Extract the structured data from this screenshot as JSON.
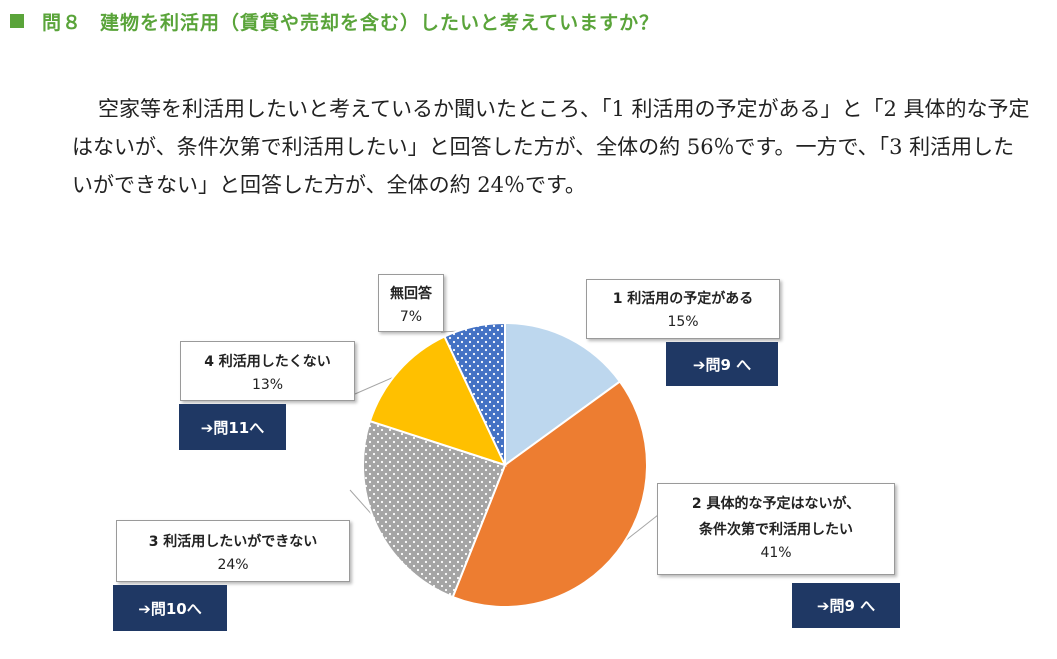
{
  "question": {
    "number": "問８",
    "title": "建物を利活用（賃貸や売却を含む）したいと考えていますか？"
  },
  "description": "空家等を利活用したいと考えているか聞いたところ、「1 利活用の予定がある」と「2 具体的な予定はないが、条件次第で利活用したい」と回答した方が、全体の約 56％です。一方で、「3 利活用したいができない」と回答した方が、全体の約 24％です。",
  "colors": {
    "heading": "#5aa43a",
    "nav_bg": "#1f3864",
    "slice1": "#bdd7ee",
    "slice2": "#ed7d31",
    "slice3": "#a5a5a5",
    "slice4": "#ffc000",
    "slice5": "#4472c4"
  },
  "chart_data": {
    "type": "pie",
    "start_angle": "12 o'clock",
    "direction": "clockwise",
    "slices": [
      {
        "category": "1 利活用の予定がある",
        "value": 15,
        "label": "15%",
        "next": "➔問9 へ"
      },
      {
        "category": "2 具体的な予定はないが、条件次第で利活用したい",
        "category_lines": [
          "2 具体的な予定はないが、",
          "条件次第で利活用したい"
        ],
        "value": 41,
        "label": "41%",
        "next": "➔問9 へ"
      },
      {
        "category": "3 利活用したいができない",
        "value": 24,
        "label": "24%",
        "next": "➔問10へ"
      },
      {
        "category": "4 利活用したくない",
        "value": 13,
        "label": "13%",
        "next": "➔問11へ"
      },
      {
        "category": "無回答",
        "value": 7,
        "label": "7%"
      }
    ]
  }
}
